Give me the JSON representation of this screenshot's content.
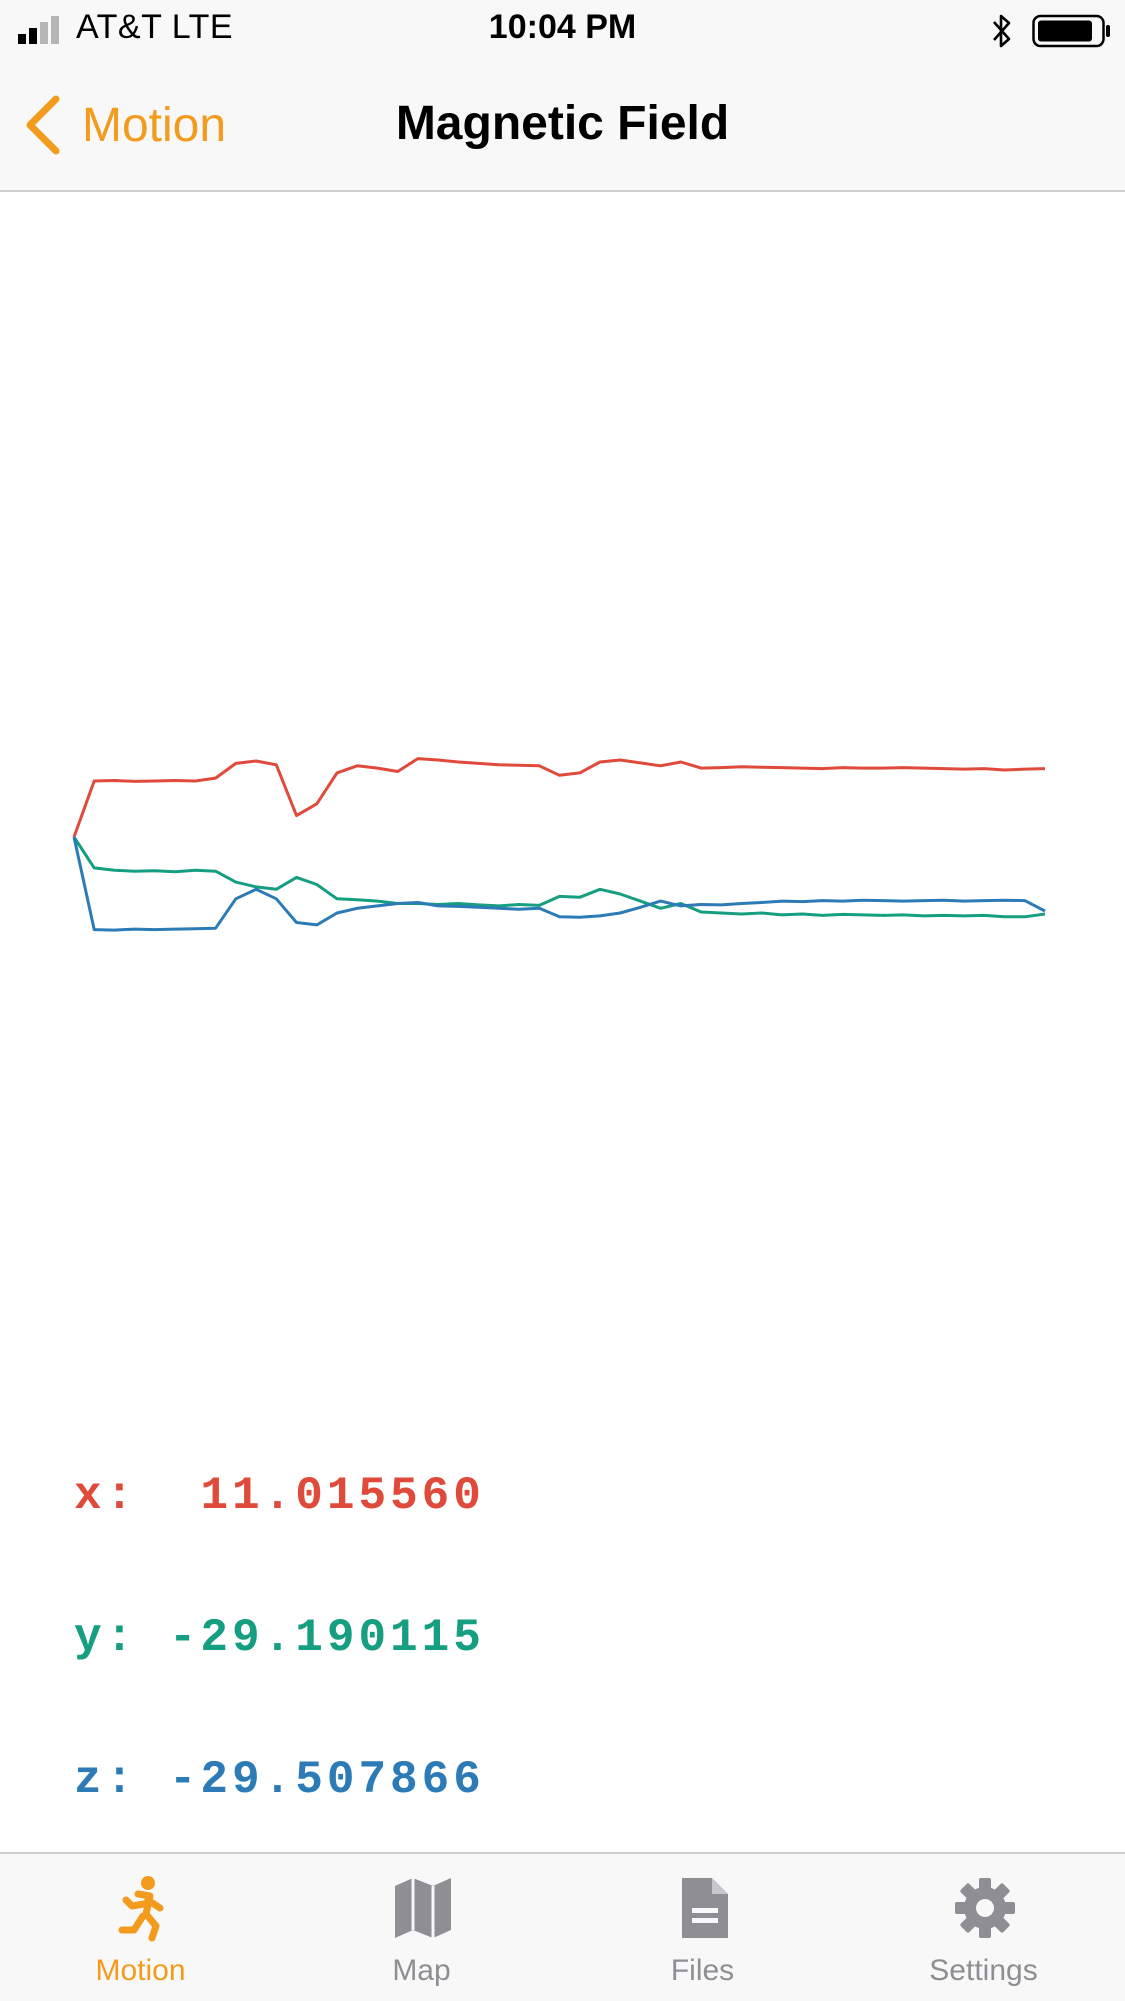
{
  "status_bar": {
    "carrier": "AT&T   LTE",
    "time": "10:04 PM",
    "icons": [
      "signal-icon",
      "bluetooth-icon",
      "battery-icon"
    ]
  },
  "nav": {
    "back_label": "Motion",
    "title": "Magnetic Field"
  },
  "colors": {
    "accent": "#f29b1d",
    "x": "#df4a3b",
    "y": "#169e80",
    "z": "#2c7bb6",
    "inactive": "#8e8e93"
  },
  "readouts": {
    "x_label": "x:",
    "x_value": "11.015560",
    "y_label": "y:",
    "y_value": "-29.190115",
    "z_label": "z:",
    "z_value": "-29.507866"
  },
  "chart_data": {
    "type": "line",
    "grid": false,
    "legend": "none",
    "x": [
      0,
      1,
      2,
      3,
      4,
      5,
      6,
      7,
      8,
      9,
      10,
      11,
      12,
      13,
      14,
      15,
      16,
      17,
      18,
      19,
      20,
      21,
      22,
      23,
      24,
      25,
      26,
      27,
      28,
      29,
      30,
      31,
      32,
      33,
      34,
      35,
      36,
      37,
      38,
      39,
      40,
      41,
      42,
      43,
      44,
      45,
      46,
      47,
      48
    ],
    "series": [
      {
        "values": [
          0,
          11.8,
          11.9,
          11.7,
          11.8,
          11.9,
          11.8,
          12.4,
          15.5,
          16.0,
          15.2,
          4.5,
          7.0,
          13.5,
          15.0,
          14.5,
          13.8,
          16.5,
          16.2,
          15.8,
          15.5,
          15.2,
          15.1,
          15.0,
          13.0,
          13.5,
          15.8,
          16.2,
          15.6,
          15.0,
          15.8,
          14.5,
          14.6,
          14.8,
          14.7,
          14.6,
          14.5,
          14.4,
          14.6,
          14.5,
          14.5,
          14.6,
          14.5,
          14.4,
          14.3,
          14.4,
          14.1,
          14.3,
          14.4
        ]
      },
      {
        "values": [
          0,
          -6.5,
          -7.0,
          -7.2,
          -7.1,
          -7.3,
          -7.0,
          -7.2,
          -9.5,
          -10.5,
          -11.0,
          -8.5,
          -10.0,
          -13.0,
          -13.2,
          -13.5,
          -14.0,
          -14.0,
          -14.2,
          -14.0,
          -14.3,
          -14.5,
          -14.2,
          -14.4,
          -12.5,
          -12.7,
          -11.0,
          -12.0,
          -13.5,
          -15.0,
          -14.0,
          -15.8,
          -16.0,
          -16.2,
          -16.0,
          -16.4,
          -16.2,
          -16.5,
          -16.3,
          -16.4,
          -16.5,
          -16.4,
          -16.6,
          -16.5,
          -16.6,
          -16.5,
          -16.8,
          -16.8,
          -16.2
        ]
      },
      {
        "values": [
          0,
          -19.5,
          -19.6,
          -19.4,
          -19.5,
          -19.4,
          -19.3,
          -19.2,
          -13.0,
          -11.0,
          -13.0,
          -18.0,
          -18.5,
          -16.0,
          -15.0,
          -14.5,
          -14.0,
          -13.8,
          -14.5,
          -14.6,
          -14.8,
          -15.0,
          -15.2,
          -15.0,
          -16.8,
          -16.9,
          -16.6,
          -16.0,
          -14.8,
          -13.5,
          -14.5,
          -14.2,
          -14.3,
          -14.0,
          -13.8,
          -13.5,
          -13.6,
          -13.4,
          -13.5,
          -13.3,
          -13.4,
          -13.5,
          -13.4,
          -13.3,
          -13.5,
          -13.4,
          -13.3,
          -13.4,
          -15.6
        ]
      }
    ]
  },
  "tabs": [
    {
      "label": "Motion",
      "icon": "running-figure-icon",
      "active": true
    },
    {
      "label": "Map",
      "icon": "map-icon",
      "active": false
    },
    {
      "label": "Files",
      "icon": "document-icon",
      "active": false
    },
    {
      "label": "Settings",
      "icon": "gear-icon",
      "active": false
    }
  ]
}
